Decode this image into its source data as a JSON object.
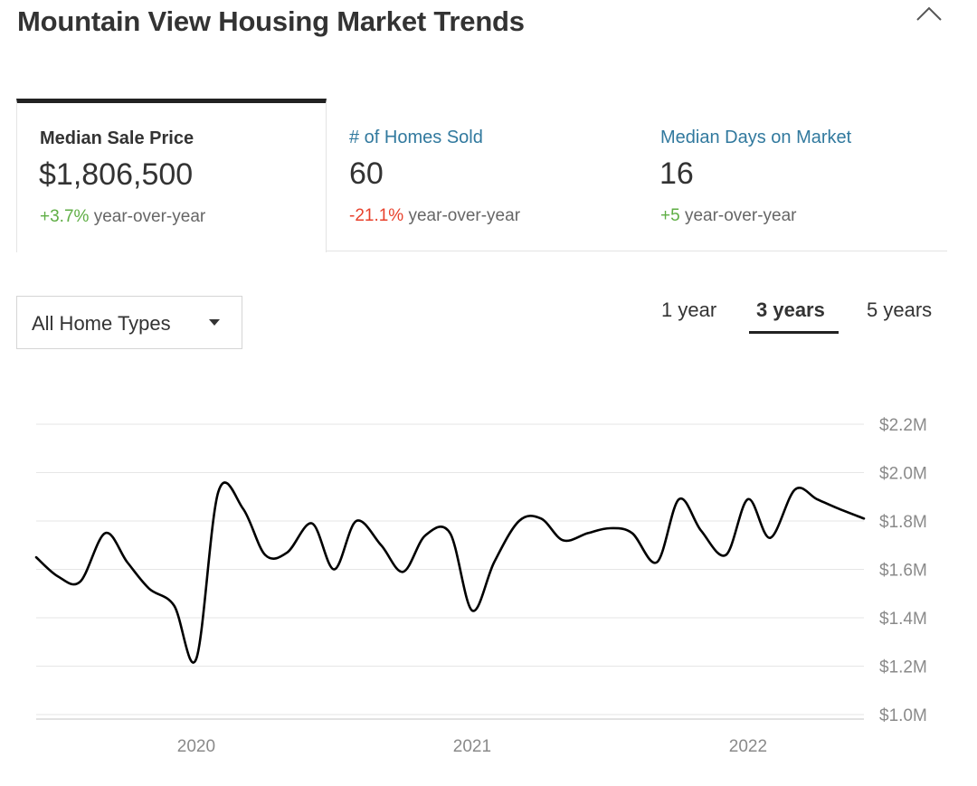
{
  "header": {
    "title": "Mountain View Housing Market Trends",
    "collapse_icon": "chevron-up-icon"
  },
  "stats": [
    {
      "label": "Median Sale Price",
      "value": "$1,806,500",
      "change": "+3.7%",
      "change_suffix": "year-over-year",
      "direction": "positive",
      "active": true
    },
    {
      "label": "# of Homes Sold",
      "value": "60",
      "change": "-21.1%",
      "change_suffix": "year-over-year",
      "direction": "negative",
      "active": false
    },
    {
      "label": "Median Days on Market",
      "value": "16",
      "change": "+5",
      "change_suffix": "year-over-year",
      "direction": "positive",
      "active": false
    }
  ],
  "filters": {
    "home_type": {
      "selected": "All Home Types",
      "icon": "caret-down-icon"
    },
    "ranges": [
      {
        "label": "1 year",
        "active": false
      },
      {
        "label": "3 years",
        "active": true
      },
      {
        "label": "5 years",
        "active": false
      }
    ]
  },
  "colors": {
    "positive": "#5fae45",
    "negative": "#e8412c",
    "link": "#31799e",
    "line": "#000000"
  },
  "chart_data": {
    "type": "line",
    "title": "",
    "xlabel": "",
    "ylabel": "",
    "x_ticks": [
      2020,
      2021,
      2022
    ],
    "y_ticks": [
      {
        "value": 1.0,
        "label": "$1.0M"
      },
      {
        "value": 1.2,
        "label": "$1.2M"
      },
      {
        "value": 1.4,
        "label": "$1.4M"
      },
      {
        "value": 1.6,
        "label": "$1.6M"
      },
      {
        "value": 1.8,
        "label": "$1.8M"
      },
      {
        "value": 2.0,
        "label": "$2.0M"
      },
      {
        "value": 2.2,
        "label": "$2.2M"
      }
    ],
    "xlim": [
      2019.42,
      2022.42
    ],
    "ylim": [
      1.0,
      2.2
    ],
    "grid": true,
    "series": [
      {
        "values": [
          [
            2019.42,
            1.65
          ],
          [
            2019.5,
            1.57
          ],
          [
            2019.58,
            1.55
          ],
          [
            2019.67,
            1.75
          ],
          [
            2019.75,
            1.63
          ],
          [
            2019.83,
            1.52
          ],
          [
            2019.92,
            1.45
          ],
          [
            2020.0,
            1.23
          ],
          [
            2020.08,
            1.92
          ],
          [
            2020.17,
            1.85
          ],
          [
            2020.25,
            1.66
          ],
          [
            2020.33,
            1.67
          ],
          [
            2020.42,
            1.79
          ],
          [
            2020.5,
            1.6
          ],
          [
            2020.58,
            1.8
          ],
          [
            2020.67,
            1.7
          ],
          [
            2020.75,
            1.59
          ],
          [
            2020.83,
            1.74
          ],
          [
            2020.92,
            1.75
          ],
          [
            2021.0,
            1.43
          ],
          [
            2021.08,
            1.63
          ],
          [
            2021.17,
            1.8
          ],
          [
            2021.25,
            1.81
          ],
          [
            2021.33,
            1.72
          ],
          [
            2021.42,
            1.75
          ],
          [
            2021.5,
            1.77
          ],
          [
            2021.58,
            1.75
          ],
          [
            2021.67,
            1.63
          ],
          [
            2021.75,
            1.89
          ],
          [
            2021.83,
            1.76
          ],
          [
            2021.92,
            1.66
          ],
          [
            2022.0,
            1.89
          ],
          [
            2022.08,
            1.73
          ],
          [
            2022.17,
            1.93
          ],
          [
            2022.25,
            1.89
          ],
          [
            2022.33,
            1.85
          ],
          [
            2022.42,
            1.81
          ]
        ]
      }
    ]
  }
}
